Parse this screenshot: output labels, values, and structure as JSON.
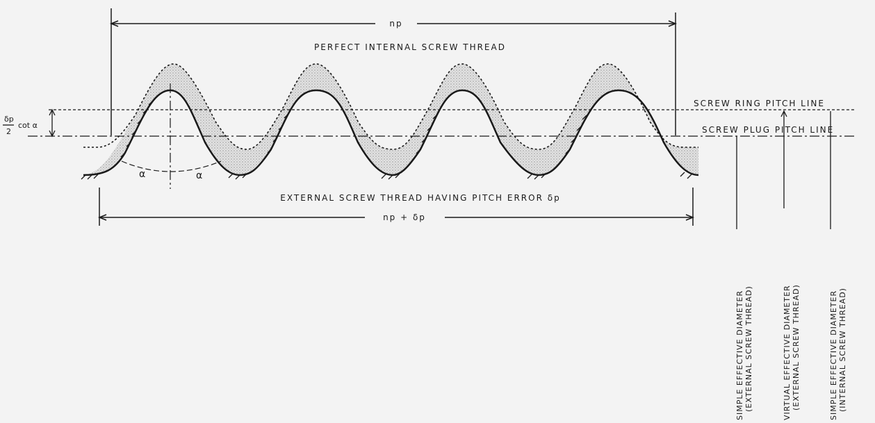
{
  "labels": {
    "np": "np",
    "perfect_internal": "PERFECT INTERNAL SCREW THREAD",
    "external_with_error": "EXTERNAL SCREW THREAD HAVING PITCH ERROR δp",
    "np_plus_dp": "np + δp",
    "ring_pitch_line": "SCREW RING PITCH LINE",
    "plug_pitch_line": "SCREW PLUG PITCH LINE",
    "offset_numerator": "δp",
    "offset_cot": "cot α",
    "offset_denominator": "2",
    "alpha": "α",
    "alpha2": "α"
  },
  "diameters": [
    {
      "line1": "SIMPLE EFFECTIVE DIAMETER",
      "line2": "(EXTERNAL SCREW THREAD)"
    },
    {
      "line1": "VIRTUAL EFFECTIVE DIAMETER",
      "line2": "(EXTERNAL SCREW THREAD)"
    },
    {
      "line1": "SIMPLE EFFECTIVE DIAMETER",
      "line2": "(INTERNAL SCREW THREAD)"
    }
  ],
  "colors": {
    "ink": "#1a1a1a",
    "paper": "#f3f3f3",
    "stipple": "#c9c9c9"
  }
}
